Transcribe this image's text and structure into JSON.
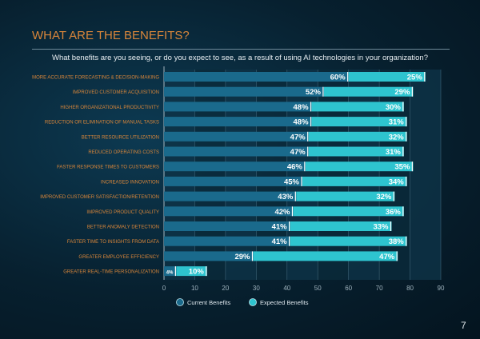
{
  "page": {
    "title": "WHAT ARE THE BENEFITS?",
    "page_number": "7"
  },
  "chart_data": {
    "type": "bar",
    "orientation": "horizontal",
    "stacked": true,
    "title": "What benefits are you seeing, or do you expect to see, as a result of using AI technologies in your organization?",
    "categories": [
      "MORE ACCURATE FORECASTING & DECISION-MAKING",
      "IMPROVED CUSTOMER ACQUISITION",
      "HIGHER ORGANIZATIONAL PRODUCTIVITY",
      "REDUCTION OR ELIMINATION OF MANUAL TASKS",
      "BETTER RESOURCE UTILIZATION",
      "REDUCED OPERATING COSTS",
      "FASTER RESPONSE TIMES TO CUSTOMERS",
      "INCREASED INNOVATION",
      "IMPROVED CUSTOMER SATISFACTION/RETENTION",
      "IMPROVED PRODUCT QUALITY",
      "BETTER ANOMALY DETECTION",
      "FASTER TIME TO INSIGHTS FROM DATA",
      "GREATER EMPLOYEE EFFICIENCY",
      "GREATER REAL-TIME PERSONALIZATION"
    ],
    "series": [
      {
        "name": "Current Benefits",
        "color": "#1a6a8c",
        "values": [
          60,
          52,
          48,
          48,
          47,
          47,
          46,
          45,
          43,
          42,
          41,
          41,
          29,
          4
        ]
      },
      {
        "name": "Expected Benefits",
        "color": "#2ec4cf",
        "values": [
          25,
          29,
          30,
          31,
          32,
          31,
          35,
          34,
          32,
          36,
          33,
          38,
          47,
          10
        ]
      }
    ],
    "xlim": [
      0,
      90
    ],
    "xticks": [
      "0",
      "10",
      "20",
      "30",
      "40",
      "50",
      "60",
      "70",
      "80",
      "90"
    ],
    "legend": "bottom",
    "grid": true,
    "label_color": "#d9863a"
  }
}
